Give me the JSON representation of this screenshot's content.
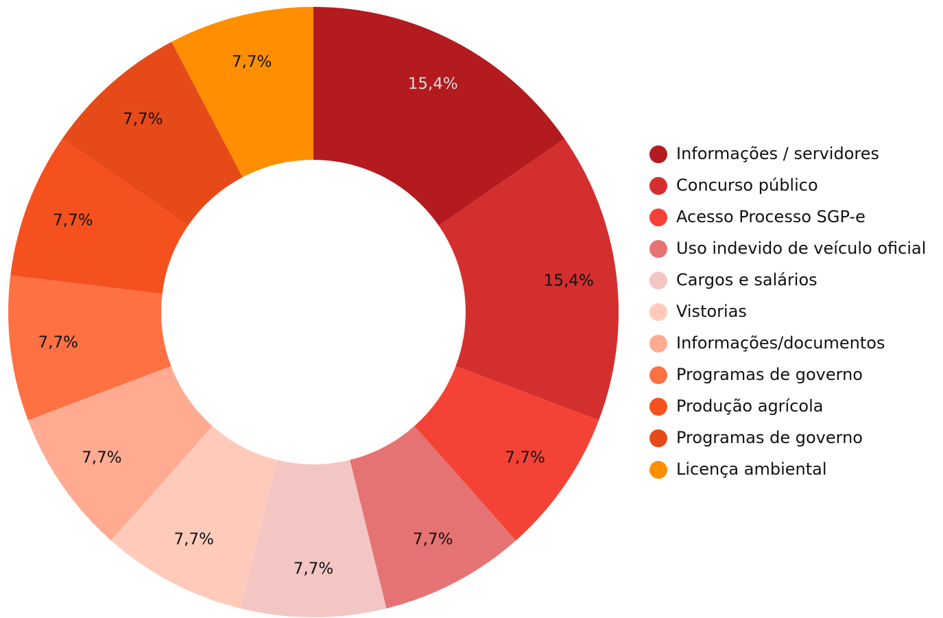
{
  "chart_data": {
    "type": "pie",
    "categories": [
      "Informações / servidores",
      "Concurso público",
      "Acesso Processo SGP-e",
      "Uso indevido de veículo oficial",
      "Cargos e salários",
      "Vistorias",
      "Informações/documentos",
      "Programas de governo",
      "Produção agrícola",
      "Programas de governo",
      "Licença ambiental"
    ],
    "values": [
      15.4,
      15.4,
      7.7,
      7.7,
      7.7,
      7.7,
      7.7,
      7.7,
      7.7,
      7.7,
      7.7
    ],
    "value_labels": [
      "15,4%",
      "15,4%",
      "7,7%",
      "7,7%",
      "7,7%",
      "7,7%",
      "7,7%",
      "7,7%",
      "7,7%",
      "7,7%",
      "7,7%"
    ],
    "colors": [
      "#b31b1e",
      "#d32f2f",
      "#f44336",
      "#e57373",
      "#f3c6c4",
      "#fecbbb",
      "#ffab91",
      "#ff7043",
      "#f4511e",
      "#e64a19",
      "#ff8f00"
    ],
    "legend": "right"
  }
}
